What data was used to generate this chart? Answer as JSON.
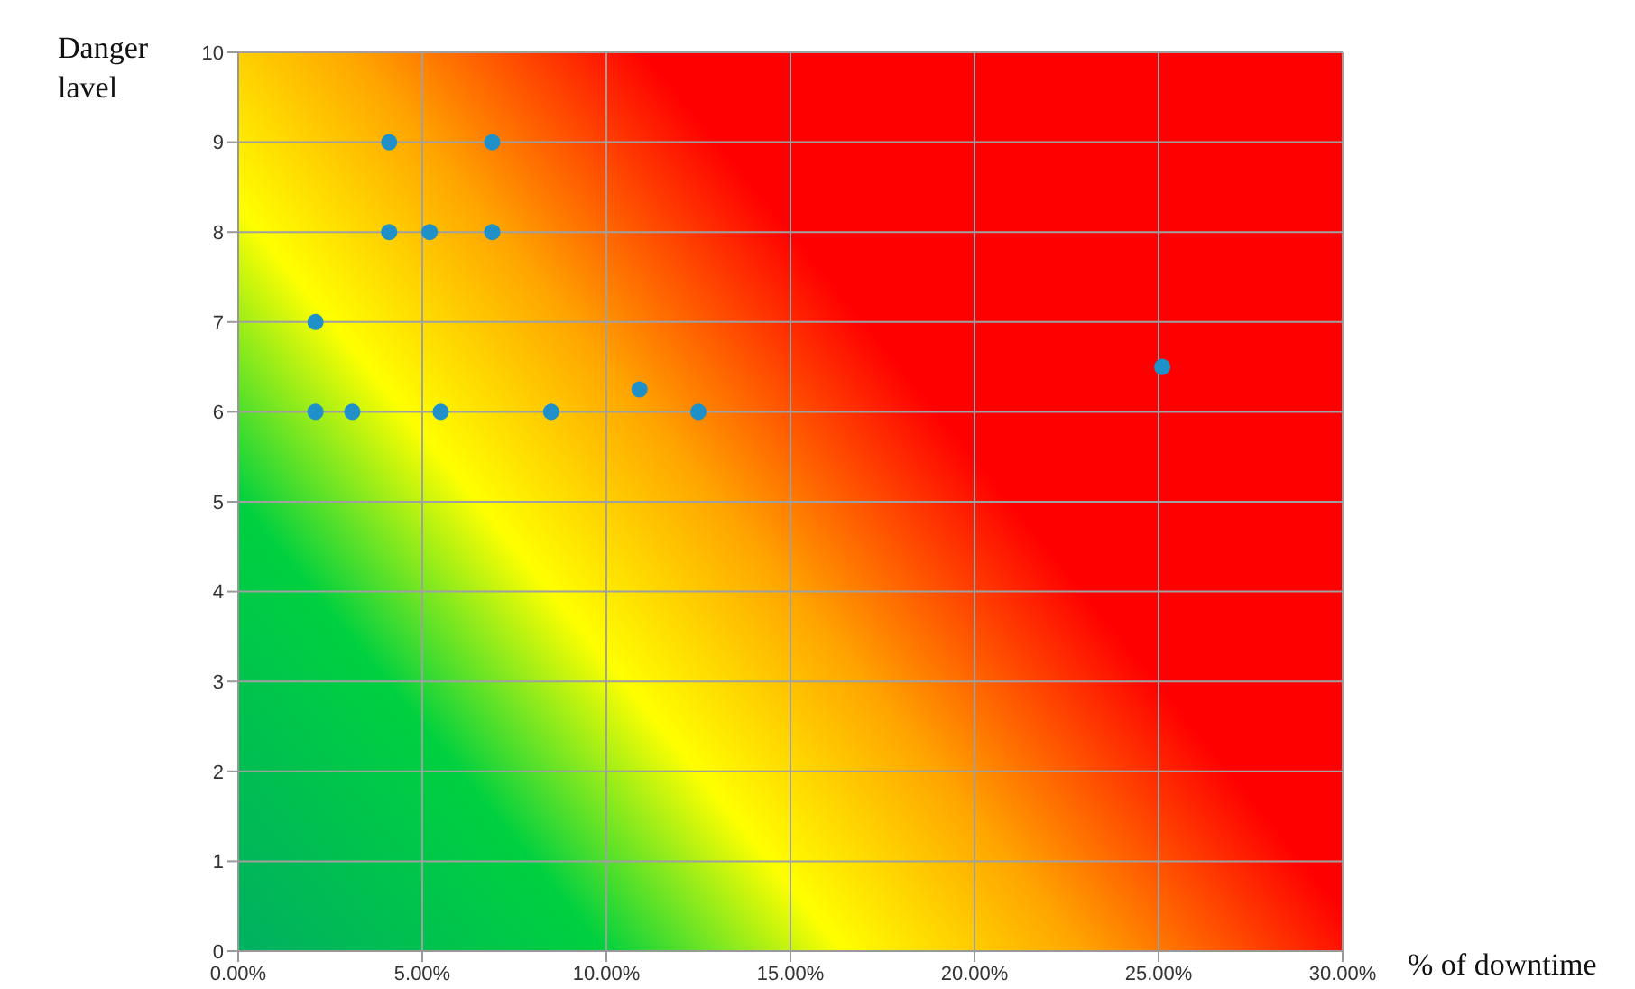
{
  "chart_data": {
    "type": "scatter",
    "ylabel": "Danger lavel",
    "xlabel": "% of downtime",
    "x": [
      4.1,
      6.9,
      4.1,
      5.2,
      6.9,
      2.1,
      2.1,
      3.1,
      5.5,
      8.5,
      10.9,
      12.5,
      25.1
    ],
    "values": [
      9,
      9,
      8,
      8,
      8,
      7,
      6,
      6,
      6,
      6,
      6.25,
      6,
      6.5
    ],
    "color": "#2090c8",
    "marker": "circle",
    "grid": true,
    "xlim": [
      0,
      30
    ],
    "xticks": [
      {
        "value": 0,
        "label": "0.00%"
      },
      {
        "value": 5,
        "label": "5.00%"
      },
      {
        "value": 10,
        "label": "10.00%"
      },
      {
        "value": 15,
        "label": "15.00%"
      },
      {
        "value": 20,
        "label": "20.00%"
      },
      {
        "value": 25,
        "label": "25.00%"
      },
      {
        "value": 30,
        "label": "30.00%"
      }
    ],
    "ylim": [
      0,
      10
    ],
    "yticks": [
      0,
      1,
      2,
      3,
      4,
      5,
      6,
      7,
      8,
      9,
      10
    ]
  }
}
